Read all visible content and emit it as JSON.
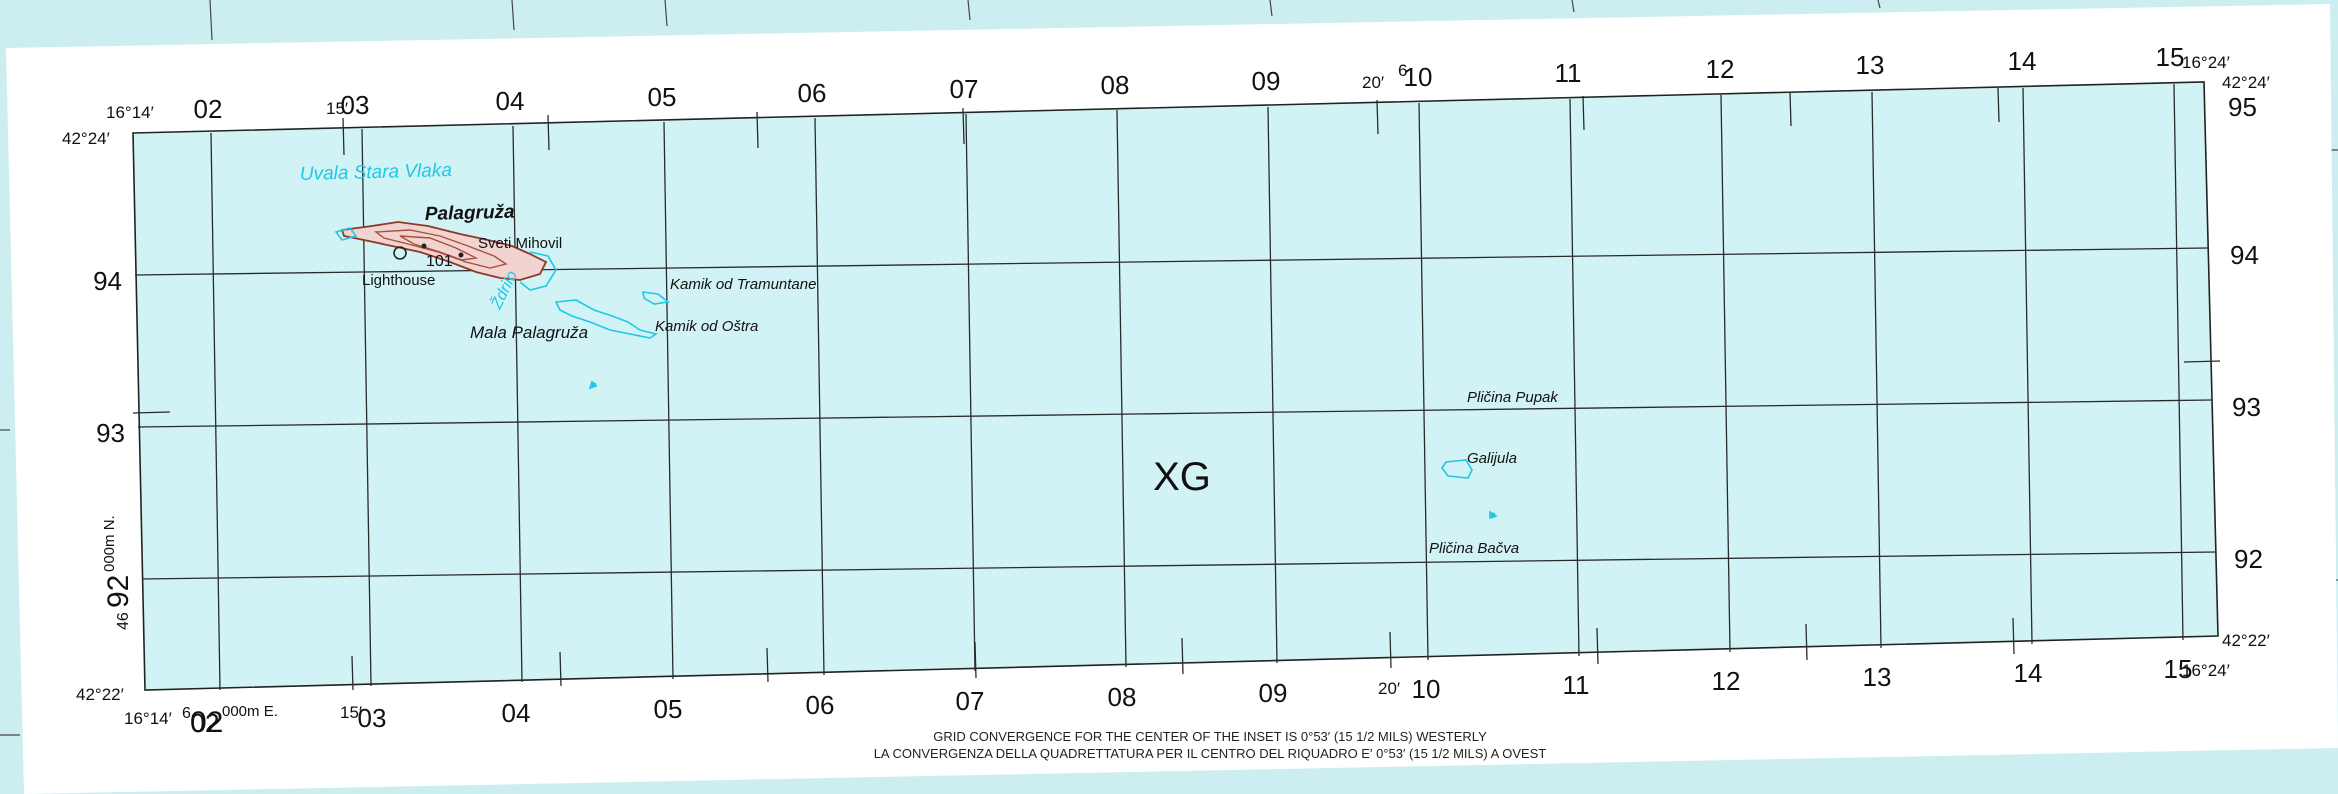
{
  "colors": {
    "water": "#d2f3f5",
    "paper": "#ffffff",
    "outer_water": "#cdeef0",
    "grid": "#2a2a2a",
    "hydro": "#1fc8e6",
    "land_outline": "#8b3a2a",
    "land_fill": "#f2d3cf",
    "text": "#111111"
  },
  "zone_label": "XG",
  "grid_labels_top": [
    "02",
    "03",
    "04",
    "05",
    "06",
    "07",
    "08",
    "09",
    "10",
    "11",
    "12",
    "13",
    "14",
    "15"
  ],
  "grid_labels_bottom": [
    "02",
    "03",
    "04",
    "05",
    "06",
    "07",
    "08",
    "09",
    "10",
    "11",
    "12",
    "13",
    "14",
    "15"
  ],
  "grid_labels_left": [
    "94",
    "93",
    "92"
  ],
  "grid_labels_right": [
    "95",
    "94",
    "93",
    "92"
  ],
  "geo": {
    "lon_west": "16°14′",
    "lon_15": "15′",
    "lon_20": "20′",
    "lon_east": "16°24′",
    "lat_north": "42°24′",
    "lat_south": "42°22′",
    "east_prefix": "6",
    "north_prefix": "46",
    "northing_label": "92",
    "northing_suffix": "000m N.",
    "easting_label": "02",
    "easting_suffix": "000m E."
  },
  "places": {
    "uvala": "Uvala Stara Vlaka",
    "palagruza": "Palagruža",
    "sveti_mihovil": "Sveti Mihovil",
    "lighthouse": "Lighthouse",
    "elevation": "101",
    "zdrilo": "Ždrilo",
    "kamik_tramuntane": "Kamik od Tramuntane",
    "mala_palagruza": "Mala Palagruža",
    "kamik_ostra": "Kamik od Oštra",
    "plicina_pupak": "Pličina Pupak",
    "galijula": "Galijula",
    "plicina_bacva": "Pličina Bačva"
  },
  "notes": {
    "line1": "GRID CONVERGENCE FOR THE CENTER OF THE INSET IS 0°53′ (15 1/2 MILS) WESTERLY",
    "line2": "LA CONVERGENZA DELLA QUADRETTATURA PER IL CENTRO DEL RIQUADRO E' 0°53′ (15 1/2 MILS) A OVEST"
  }
}
